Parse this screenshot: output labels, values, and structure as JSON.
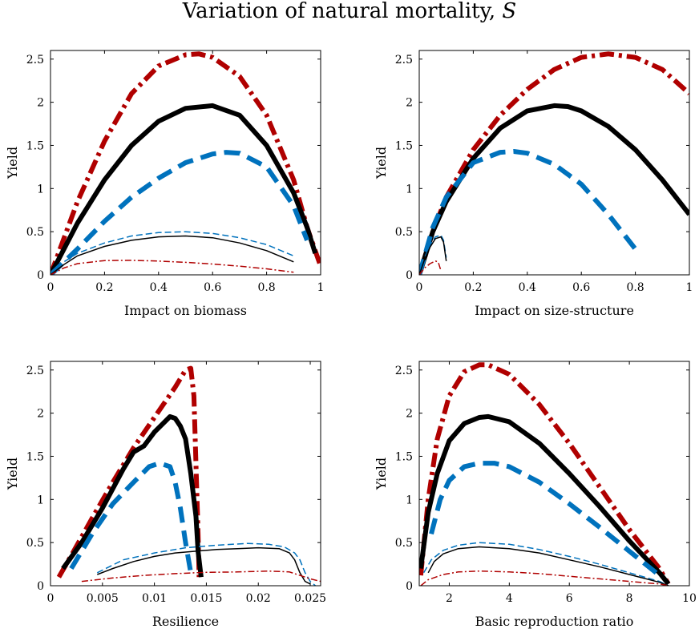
{
  "figure": {
    "title": "Variation of natural mortality, ",
    "title_symbol": "S"
  },
  "chart_data": [
    {
      "type": "line",
      "xlabel": "Impact on biomass",
      "ylabel": "Yield",
      "xlim": [
        0,
        1
      ],
      "ylim": [
        0,
        2.6
      ],
      "xticks": [
        0,
        0.2,
        0.4,
        0.6,
        0.8,
        1
      ],
      "xtick_labels": [
        "0",
        "0.2",
        "0.4",
        "0.6",
        "0.8",
        "1"
      ],
      "yticks": [
        0,
        0.5,
        1,
        1.5,
        2,
        2.5
      ],
      "ytick_labels": [
        "0",
        "0.5",
        "1",
        "1.5",
        "2",
        "2.5"
      ],
      "series": [
        {
          "name": "red thick dash-dot",
          "color": "#b00000",
          "style": "dashdot-thick",
          "x": [
            0,
            0.1,
            0.2,
            0.3,
            0.4,
            0.5,
            0.55,
            0.6,
            0.7,
            0.8,
            0.9,
            0.95,
            1.0
          ],
          "y": [
            0,
            0.85,
            1.55,
            2.1,
            2.42,
            2.55,
            2.56,
            2.52,
            2.3,
            1.85,
            1.1,
            0.55,
            0.1
          ]
        },
        {
          "name": "black thick solid",
          "color": "#000000",
          "style": "solid-thick",
          "x": [
            0,
            0.1,
            0.2,
            0.3,
            0.4,
            0.5,
            0.6,
            0.7,
            0.8,
            0.9,
            0.95,
            0.98
          ],
          "y": [
            0,
            0.6,
            1.1,
            1.5,
            1.78,
            1.93,
            1.96,
            1.85,
            1.5,
            0.95,
            0.55,
            0.25
          ]
        },
        {
          "name": "blue thick dashed",
          "color": "#0072bd",
          "style": "dashed-thick",
          "x": [
            0,
            0.1,
            0.2,
            0.3,
            0.4,
            0.5,
            0.6,
            0.65,
            0.7,
            0.8,
            0.9,
            0.95
          ],
          "y": [
            0,
            0.3,
            0.62,
            0.9,
            1.12,
            1.3,
            1.4,
            1.42,
            1.41,
            1.25,
            0.8,
            0.4
          ]
        },
        {
          "name": "blue thin dashed",
          "color": "#0072bd",
          "style": "dashed-thin",
          "x": [
            0,
            0.05,
            0.1,
            0.2,
            0.3,
            0.4,
            0.5,
            0.6,
            0.7,
            0.8,
            0.9
          ],
          "y": [
            0,
            0.15,
            0.25,
            0.37,
            0.45,
            0.49,
            0.5,
            0.48,
            0.43,
            0.35,
            0.22
          ]
        },
        {
          "name": "black thin solid",
          "color": "#000000",
          "style": "solid-thin",
          "x": [
            0,
            0.05,
            0.1,
            0.2,
            0.3,
            0.4,
            0.5,
            0.6,
            0.7,
            0.8,
            0.9
          ],
          "y": [
            0,
            0.12,
            0.22,
            0.33,
            0.4,
            0.44,
            0.45,
            0.43,
            0.37,
            0.28,
            0.15
          ]
        },
        {
          "name": "red thin dash-dot",
          "color": "#b00000",
          "style": "dashdot-thin",
          "x": [
            0,
            0.05,
            0.1,
            0.2,
            0.3,
            0.4,
            0.5,
            0.6,
            0.7,
            0.8,
            0.9
          ],
          "y": [
            0,
            0.08,
            0.13,
            0.165,
            0.168,
            0.16,
            0.145,
            0.125,
            0.1,
            0.07,
            0.03
          ]
        }
      ]
    },
    {
      "type": "line",
      "xlabel": "Impact on size-structure",
      "ylabel": "Yield",
      "xlim": [
        0,
        1
      ],
      "ylim": [
        0,
        2.6
      ],
      "xticks": [
        0,
        0.2,
        0.4,
        0.6,
        0.8,
        1
      ],
      "xtick_labels": [
        "0",
        "0.2",
        "0.4",
        "0.6",
        "0.8",
        "1"
      ],
      "yticks": [
        0,
        0.5,
        1,
        1.5,
        2,
        2.5
      ],
      "ytick_labels": [
        "0",
        "0.5",
        "1",
        "1.5",
        "2",
        "2.5"
      ],
      "series": [
        {
          "name": "red thick dash-dot",
          "color": "#b00000",
          "style": "dashdot-thick",
          "x": [
            0,
            0.05,
            0.1,
            0.2,
            0.3,
            0.4,
            0.5,
            0.6,
            0.7,
            0.8,
            0.9,
            1.0
          ],
          "y": [
            0,
            0.5,
            0.9,
            1.45,
            1.85,
            2.15,
            2.38,
            2.52,
            2.56,
            2.52,
            2.38,
            2.1
          ]
        },
        {
          "name": "black thick solid",
          "color": "#000000",
          "style": "solid-thick",
          "x": [
            0,
            0.05,
            0.1,
            0.2,
            0.3,
            0.4,
            0.5,
            0.55,
            0.6,
            0.7,
            0.8,
            0.9,
            1.0
          ],
          "y": [
            0,
            0.5,
            0.85,
            1.35,
            1.7,
            1.9,
            1.96,
            1.95,
            1.9,
            1.72,
            1.45,
            1.1,
            0.7
          ]
        },
        {
          "name": "blue thick dashed",
          "color": "#0072bd",
          "style": "dashed-thick",
          "x": [
            0,
            0.05,
            0.1,
            0.2,
            0.3,
            0.35,
            0.4,
            0.5,
            0.6,
            0.7,
            0.8
          ],
          "y": [
            0,
            0.55,
            0.9,
            1.3,
            1.42,
            1.43,
            1.41,
            1.28,
            1.05,
            0.7,
            0.3
          ]
        },
        {
          "name": "blue thin dashed",
          "color": "#0072bd",
          "style": "dashed-thin",
          "x": [
            0,
            0.02,
            0.04,
            0.06,
            0.08,
            0.09,
            0.1
          ],
          "y": [
            0,
            0.2,
            0.35,
            0.44,
            0.46,
            0.4,
            0.2
          ]
        },
        {
          "name": "black thin solid",
          "color": "#000000",
          "style": "solid-thin",
          "x": [
            0,
            0.02,
            0.04,
            0.06,
            0.08,
            0.09,
            0.1
          ],
          "y": [
            0,
            0.18,
            0.32,
            0.42,
            0.44,
            0.38,
            0.16
          ]
        },
        {
          "name": "red thin dash-dot",
          "color": "#b00000",
          "style": "dashdot-thin",
          "x": [
            0,
            0.02,
            0.04,
            0.06,
            0.07,
            0.08
          ],
          "y": [
            0,
            0.08,
            0.13,
            0.16,
            0.15,
            0.05
          ]
        }
      ]
    },
    {
      "type": "line",
      "xlabel": "Resilience",
      "ylabel": "Yield",
      "xlim": [
        0,
        0.026
      ],
      "ylim": [
        0,
        2.6
      ],
      "xticks": [
        0,
        0.005,
        0.01,
        0.015,
        0.02,
        0.025
      ],
      "xtick_labels": [
        "0",
        "0.005",
        "0.01",
        "0.015",
        "0.02",
        "0.025"
      ],
      "yticks": [
        0,
        0.5,
        1,
        1.5,
        2,
        2.5
      ],
      "ytick_labels": [
        "0",
        "0.5",
        "1",
        "1.5",
        "2",
        "2.5"
      ],
      "series": [
        {
          "name": "red thick dash-dot",
          "color": "#b00000",
          "style": "dashdot-thick",
          "x": [
            0.0008,
            0.002,
            0.004,
            0.006,
            0.008,
            0.01,
            0.012,
            0.013,
            0.0135,
            0.0138,
            0.014,
            0.0142,
            0.0143
          ],
          "y": [
            0.1,
            0.35,
            0.78,
            1.2,
            1.6,
            1.95,
            2.3,
            2.5,
            2.52,
            2.2,
            1.4,
            0.6,
            0.1
          ]
        },
        {
          "name": "black thick solid",
          "color": "#000000",
          "style": "solid-thick",
          "x": [
            0.0012,
            0.003,
            0.005,
            0.007,
            0.008,
            0.009,
            0.01,
            0.011,
            0.0115,
            0.012,
            0.0125,
            0.013,
            0.0135,
            0.014,
            0.0142,
            0.0145
          ],
          "y": [
            0.2,
            0.5,
            0.9,
            1.35,
            1.55,
            1.62,
            1.78,
            1.9,
            1.96,
            1.94,
            1.85,
            1.7,
            1.3,
            0.8,
            0.4,
            0.1
          ]
        },
        {
          "name": "blue thick dashed",
          "color": "#0072bd",
          "style": "dashed-thick",
          "x": [
            0.002,
            0.004,
            0.006,
            0.008,
            0.0095,
            0.0105,
            0.0115,
            0.012,
            0.0125,
            0.013,
            0.0135
          ],
          "y": [
            0.2,
            0.6,
            0.95,
            1.2,
            1.38,
            1.42,
            1.38,
            1.2,
            0.9,
            0.5,
            0.15
          ]
        },
        {
          "name": "blue thin dashed",
          "color": "#0072bd",
          "style": "dashed-thin",
          "x": [
            0.0045,
            0.007,
            0.01,
            0.013,
            0.016,
            0.019,
            0.021,
            0.0225,
            0.0235,
            0.024,
            0.0245,
            0.025,
            0.0255
          ],
          "y": [
            0.15,
            0.3,
            0.38,
            0.44,
            0.47,
            0.49,
            0.48,
            0.45,
            0.38,
            0.3,
            0.15,
            0.05,
            0.0
          ]
        },
        {
          "name": "black thin solid",
          "color": "#000000",
          "style": "solid-thin",
          "x": [
            0.0045,
            0.006,
            0.008,
            0.01,
            0.012,
            0.014,
            0.016,
            0.018,
            0.02,
            0.022,
            0.023,
            0.0235,
            0.024,
            0.0245,
            0.025
          ],
          "y": [
            0.13,
            0.2,
            0.28,
            0.34,
            0.38,
            0.4,
            0.42,
            0.43,
            0.44,
            0.43,
            0.38,
            0.3,
            0.15,
            0.05,
            0.02
          ]
        },
        {
          "name": "red thin dash-dot",
          "color": "#b00000",
          "style": "dashdot-thin",
          "x": [
            0.003,
            0.006,
            0.009,
            0.012,
            0.015,
            0.018,
            0.021,
            0.023,
            0.024,
            0.025,
            0.026
          ],
          "y": [
            0.05,
            0.09,
            0.12,
            0.14,
            0.155,
            0.16,
            0.17,
            0.16,
            0.12,
            0.08,
            0.05
          ]
        }
      ]
    },
    {
      "type": "line",
      "xlabel": "Basic reproduction ratio",
      "ylabel": "Yield",
      "xlim": [
        1,
        10
      ],
      "ylim": [
        0,
        2.6
      ],
      "xticks": [
        2,
        4,
        6,
        8,
        10
      ],
      "xtick_labels": [
        "2",
        "4",
        "6",
        "8",
        "10"
      ],
      "yticks": [
        0,
        0.5,
        1,
        1.5,
        2,
        2.5
      ],
      "ytick_labels": [
        "0",
        "0.5",
        "1",
        "1.5",
        "2",
        "2.5"
      ],
      "series": [
        {
          "name": "red thick dash-dot",
          "color": "#b00000",
          "style": "dashdot-thick",
          "x": [
            1.05,
            1.3,
            1.6,
            2.0,
            2.5,
            3.0,
            3.3,
            4.0,
            5.0,
            6.0,
            7.0,
            8.0,
            9.0,
            9.3
          ],
          "y": [
            0.12,
            1.0,
            1.7,
            2.2,
            2.48,
            2.56,
            2.56,
            2.45,
            2.1,
            1.65,
            1.15,
            0.65,
            0.2,
            0.02
          ]
        },
        {
          "name": "black thick solid",
          "color": "#000000",
          "style": "solid-thick",
          "x": [
            1.05,
            1.3,
            1.6,
            2.0,
            2.5,
            3.0,
            3.3,
            4.0,
            5.0,
            6.0,
            7.0,
            8.0,
            9.0,
            9.3
          ],
          "y": [
            0.2,
            0.85,
            1.3,
            1.68,
            1.88,
            1.95,
            1.96,
            1.9,
            1.65,
            1.3,
            0.92,
            0.52,
            0.15,
            0.02
          ]
        },
        {
          "name": "blue thick dashed",
          "color": "#0072bd",
          "style": "dashed-thick",
          "x": [
            1.4,
            1.7,
            2.0,
            2.5,
            3.0,
            3.5,
            4.0,
            5.0,
            6.0,
            7.0,
            8.0,
            9.0
          ],
          "y": [
            0.6,
            1.0,
            1.22,
            1.38,
            1.42,
            1.42,
            1.38,
            1.2,
            0.95,
            0.68,
            0.4,
            0.12
          ]
        },
        {
          "name": "blue thin dashed",
          "color": "#0072bd",
          "style": "dashed-thin",
          "x": [
            1.15,
            1.4,
            1.8,
            2.3,
            3.0,
            4.0,
            5.0,
            6.0,
            7.0,
            8.0,
            9.0,
            9.3
          ],
          "y": [
            0.15,
            0.3,
            0.41,
            0.47,
            0.5,
            0.48,
            0.42,
            0.34,
            0.25,
            0.15,
            0.05,
            0.0
          ]
        },
        {
          "name": "black thin solid",
          "color": "#000000",
          "style": "solid-thin",
          "x": [
            1.3,
            1.5,
            1.8,
            2.3,
            3.0,
            4.0,
            5.0,
            6.0,
            7.0,
            8.0,
            9.0,
            9.3
          ],
          "y": [
            0.15,
            0.28,
            0.37,
            0.43,
            0.45,
            0.43,
            0.38,
            0.3,
            0.22,
            0.13,
            0.04,
            0.0
          ]
        },
        {
          "name": "red thin dash-dot",
          "color": "#b00000",
          "style": "dashdot-thin",
          "x": [
            1.05,
            1.3,
            1.8,
            2.3,
            3.0,
            4.0,
            5.0,
            6.0,
            7.0,
            8.0,
            9.0,
            9.3
          ],
          "y": [
            0.0,
            0.07,
            0.13,
            0.16,
            0.17,
            0.16,
            0.14,
            0.11,
            0.08,
            0.05,
            0.02,
            0.0
          ]
        }
      ]
    }
  ]
}
